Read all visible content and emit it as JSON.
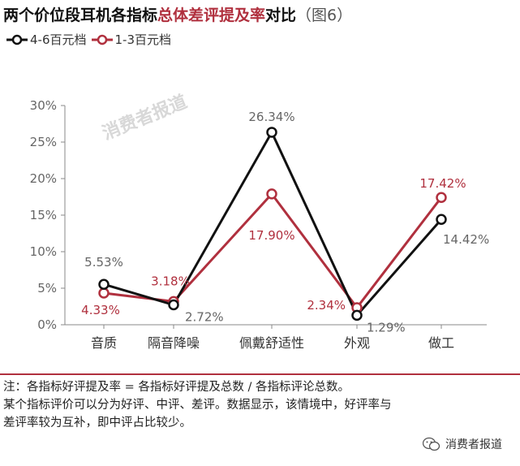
{
  "header": {
    "title_prefix": "两个价位段耳机各指标",
    "title_highlight": "总体差评提及率",
    "title_suffix": "对比",
    "figure_label": "（图6）"
  },
  "watermark": "消费者报道",
  "colors": {
    "series_a": "#111111",
    "series_b": "#b0303e",
    "axis": "#888888",
    "label": "#666666"
  },
  "chart_data": {
    "type": "line",
    "categories": [
      "音质",
      "隔音降噪",
      "佩戴舒适性",
      "外观",
      "做工"
    ],
    "ylim": [
      0,
      30
    ],
    "yticks": [
      "0%",
      "5%",
      "10%",
      "15%",
      "20%",
      "25%",
      "30%"
    ],
    "grid": false,
    "legend_position": "top-left",
    "series": [
      {
        "name": "4-6百元档",
        "values": [
          5.53,
          2.72,
          26.34,
          1.29,
          14.42
        ],
        "labels": [
          "5.53%",
          "2.72%",
          "26.34%",
          "1.29%",
          "14.42%"
        ]
      },
      {
        "name": "1-3百元档",
        "values": [
          4.33,
          3.18,
          17.9,
          2.34,
          17.42
        ],
        "labels": [
          "4.33%",
          "3.18%",
          "17.90%",
          "2.34%",
          "17.42%"
        ]
      }
    ]
  },
  "note": {
    "line1": "注：各指标好评提及率 = 各指标好评提及总数 / 各指标评论总数。",
    "line2": "某个指标评价可以分为好评、中评、差评。数据显示，该情境中，好评率与",
    "line3": "差评率较为互补，即中评占比较少。"
  },
  "source": {
    "label": "消费者报道",
    "icon": "wechat-icon"
  }
}
